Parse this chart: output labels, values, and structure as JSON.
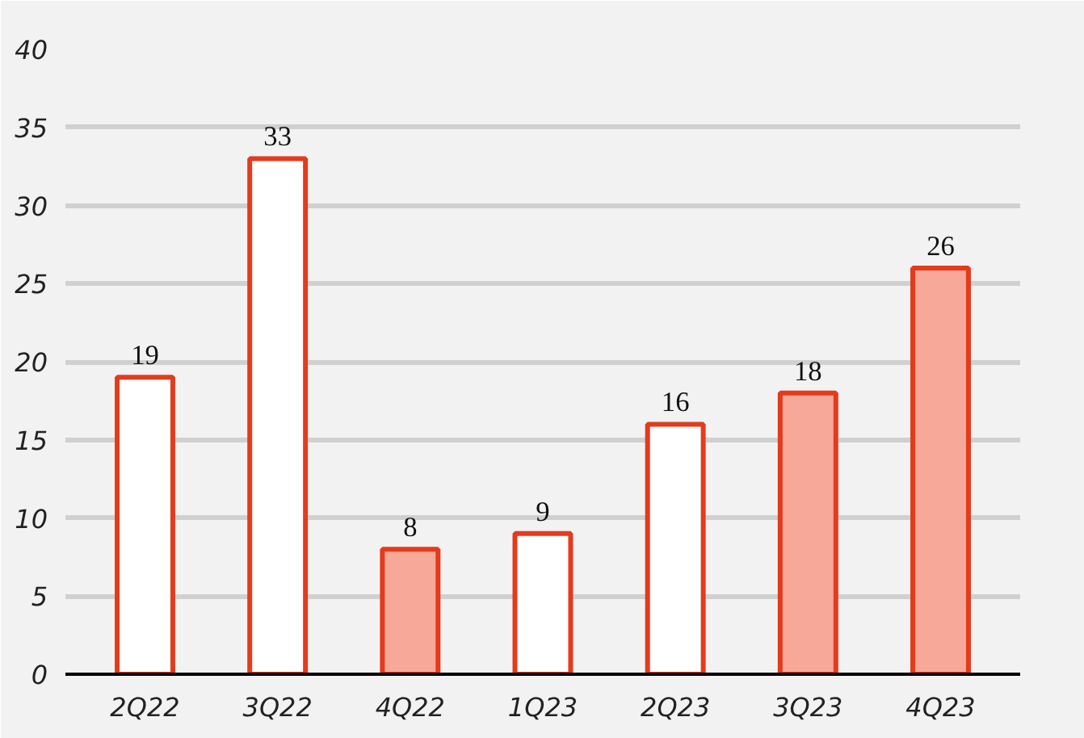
{
  "chart_data": {
    "type": "bar",
    "categories": [
      "2Q22",
      "3Q22",
      "4Q22",
      "1Q23",
      "2Q23",
      "3Q23",
      "4Q23"
    ],
    "values": [
      19,
      33,
      8,
      9,
      16,
      18,
      26
    ],
    "color": "#e33b1c",
    "colors": [
      "#ffffff",
      "#ffffff",
      "#f7a898",
      "#ffffff",
      "#ffffff",
      "#f7a898",
      "#f7a898"
    ],
    "ylim": [
      0,
      40
    ],
    "yticks": [
      0,
      5,
      10,
      15,
      20,
      25,
      30,
      35,
      40
    ],
    "grid": "y",
    "data_labels": true
  }
}
